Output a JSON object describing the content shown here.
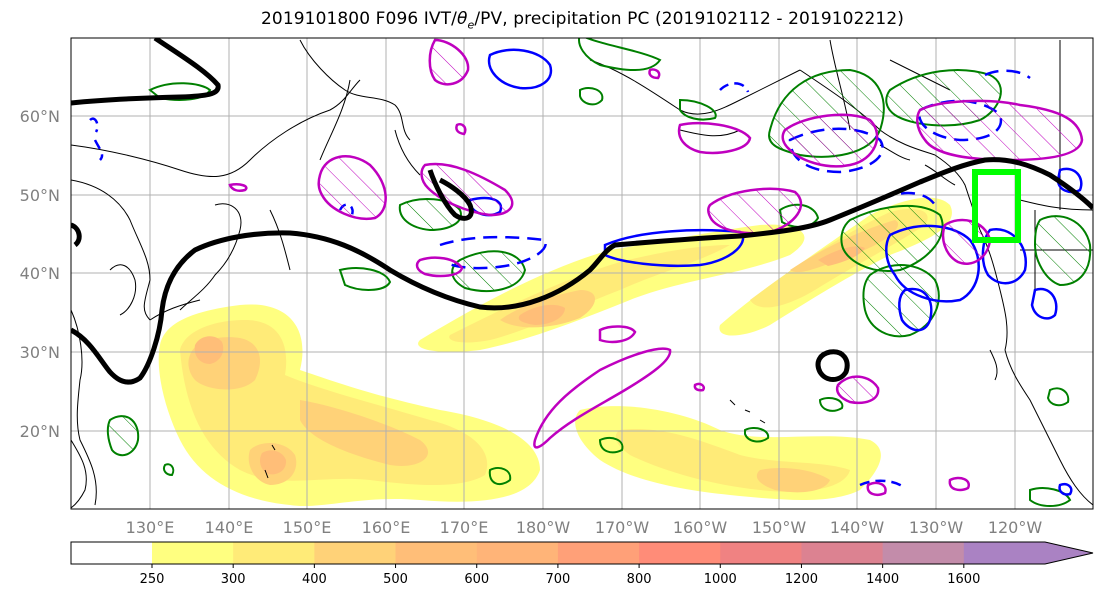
{
  "title": {
    "prefix": "2019101800 F096 IVT/",
    "theta_symbol": "θ",
    "theta_sub": "e",
    "suffix": "/PV, precipitation PC (2019102112 - 2019102212)"
  },
  "map": {
    "lon_labels": [
      "130°E",
      "140°E",
      "150°E",
      "160°E",
      "170°E",
      "180°W",
      "170°W",
      "160°W",
      "150°W",
      "140°W",
      "130°W",
      "120°W"
    ],
    "lat_labels": [
      "60°N",
      "50°N",
      "40°N",
      "30°N",
      "20°N"
    ],
    "colors": {
      "pv_contour": "#000000",
      "theta_pos": "#bf00bf",
      "theta_neg": "#0000ff",
      "precip": "#008000",
      "target_box": "#00ff00",
      "coast": "#000000",
      "grid": "#b0b0b0"
    }
  },
  "colorbar": {
    "ticks": [
      "250",
      "300",
      "400",
      "500",
      "600",
      "700",
      "800",
      "1000",
      "1200",
      "1400",
      "1600"
    ],
    "colors": [
      "#ffff80",
      "#ffeb78",
      "#ffd278",
      "#ffbe78",
      "#ffb478",
      "#ffa078",
      "#ff8c78",
      "#f08282",
      "#dc8291",
      "#c38caa",
      "#aa82c3"
    ]
  }
}
